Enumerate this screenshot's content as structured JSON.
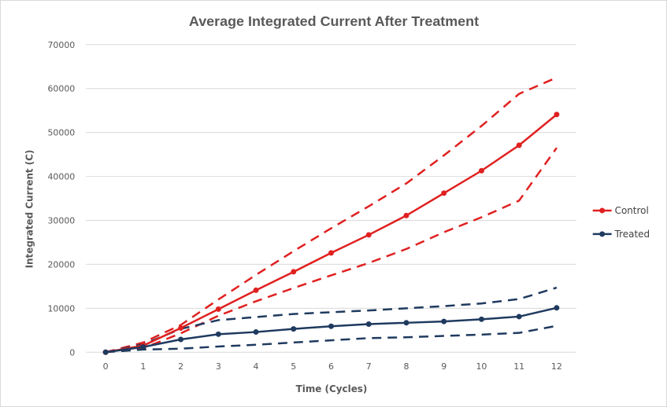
{
  "chart_data": {
    "type": "line",
    "title": "Average Integrated Current After Treatment",
    "xlabel": "Time (Cycles)",
    "ylabel": "Integrated Current (C)",
    "x": [
      0,
      1,
      2,
      3,
      4,
      5,
      6,
      7,
      8,
      9,
      10,
      11,
      12
    ],
    "x_ticks": [
      "0",
      "1",
      "2",
      "3",
      "4",
      "5",
      "6",
      "7",
      "8",
      "9",
      "10",
      "11",
      "12"
    ],
    "y_ticks": [
      "0",
      "10000",
      "20000",
      "30000",
      "40000",
      "50000",
      "60000",
      "70000"
    ],
    "xlim": [
      0,
      12
    ],
    "ylim": [
      0,
      70000
    ],
    "grid": "horizontal",
    "legend_position": "right",
    "series": [
      {
        "name": "Control",
        "color": "#e02020",
        "values": [
          0,
          1500,
          5500,
          9800,
          14100,
          18300,
          22600,
          26700,
          31100,
          36200,
          41300,
          47100,
          54100
        ],
        "upper": [
          0,
          2200,
          6200,
          12000,
          17600,
          23000,
          28200,
          33200,
          38400,
          44800,
          51500,
          58800,
          62500
        ],
        "lower": [
          0,
          900,
          4300,
          8300,
          11600,
          14600,
          17500,
          20300,
          23500,
          27300,
          30700,
          34500,
          46500
        ]
      },
      {
        "name": "Treated",
        "color": "#1f3a5f",
        "values": [
          0,
          1200,
          2900,
          4100,
          4600,
          5300,
          5900,
          6400,
          6700,
          7000,
          7500,
          8100,
          10100
        ],
        "upper": [
          0,
          1800,
          5300,
          7300,
          8000,
          8700,
          9100,
          9500,
          10000,
          10500,
          11100,
          12100,
          14700
        ],
        "lower": [
          0,
          600,
          800,
          1300,
          1700,
          2200,
          2700,
          3200,
          3400,
          3700,
          4000,
          4400,
          6000
        ]
      }
    ]
  }
}
